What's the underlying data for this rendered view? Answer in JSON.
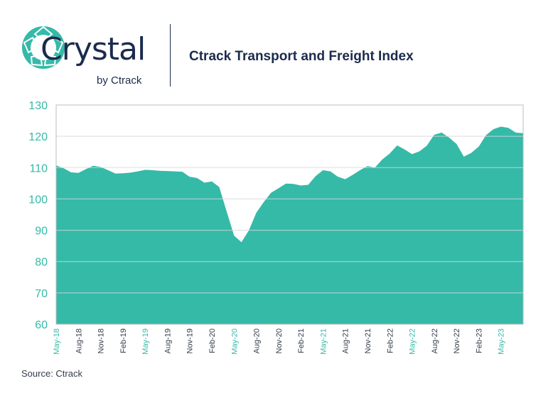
{
  "brand": {
    "name": "Crystal",
    "sub": "by Ctrack",
    "color": "#1b2b4d",
    "accent": "#35baa8"
  },
  "source": "Source: Ctrack",
  "chart_data": {
    "type": "area",
    "title": "Ctrack Transport and Freight Index",
    "xlabel": "",
    "ylabel": "",
    "ylim": [
      60,
      130
    ],
    "yticks": [
      60,
      70,
      80,
      90,
      100,
      110,
      120,
      130
    ],
    "grid": true,
    "legend": "none",
    "fill_color": "#35baa8",
    "tick_color_y": "#35baa8",
    "tick_color_x_highlight": "#35baa8",
    "tick_color_x": "#333d4d",
    "x": [
      "May-18",
      "Jun-18",
      "Jul-18",
      "Aug-18",
      "Sep-18",
      "Oct-18",
      "Nov-18",
      "Dec-18",
      "Jan-19",
      "Feb-19",
      "Mar-19",
      "Apr-19",
      "May-19",
      "Jun-19",
      "Jul-19",
      "Aug-19",
      "Sep-19",
      "Oct-19",
      "Nov-19",
      "Dec-19",
      "Jan-20",
      "Feb-20",
      "Mar-20",
      "Apr-20",
      "May-20",
      "Jun-20",
      "Jul-20",
      "Aug-20",
      "Sep-20",
      "Oct-20",
      "Nov-20",
      "Dec-20",
      "Jan-21",
      "Feb-21",
      "Mar-21",
      "Apr-21",
      "May-21",
      "Jun-21",
      "Jul-21",
      "Aug-21",
      "Sep-21",
      "Oct-21",
      "Nov-21",
      "Dec-21",
      "Jan-22",
      "Feb-22",
      "Mar-22",
      "Apr-22",
      "May-22",
      "Jun-22",
      "Jul-22",
      "Aug-22",
      "Sep-22",
      "Oct-22",
      "Nov-22",
      "Dec-22",
      "Jan-23",
      "Feb-23",
      "Mar-23",
      "Apr-23",
      "May-23",
      "Jun-23",
      "Jul-23",
      "Aug-23"
    ],
    "values": [
      110.7,
      109.8,
      108.5,
      108.3,
      109.5,
      110.6,
      110.2,
      109.2,
      108.1,
      108.2,
      108.4,
      108.8,
      109.3,
      109.2,
      109.0,
      108.9,
      108.8,
      108.7,
      107.1,
      106.7,
      105.2,
      105.6,
      103.8,
      96.0,
      88.3,
      86.2,
      90.0,
      95.6,
      99.0,
      102.0,
      103.4,
      104.9,
      104.8,
      104.3,
      104.5,
      107.3,
      109.2,
      108.8,
      107.1,
      106.3,
      107.7,
      109.2,
      110.5,
      110.0,
      112.6,
      114.5,
      117.1,
      115.8,
      114.3,
      115.2,
      117.0,
      120.5,
      121.2,
      119.6,
      117.6,
      113.5,
      114.7,
      116.7,
      120.4,
      122.3,
      123.1,
      122.7,
      121.2,
      121.0
    ],
    "tick_labels": [
      "May-18",
      "Aug-18",
      "Nov-18",
      "Feb-19",
      "May-19",
      "Aug-19",
      "Nov-19",
      "Feb-20",
      "May-20",
      "Aug-20",
      "Nov-20",
      "Feb-21",
      "May-21",
      "Aug-21",
      "Nov-21",
      "Feb-22",
      "May-22",
      "Aug-22",
      "Nov-22",
      "Feb-23",
      "May-23"
    ]
  }
}
